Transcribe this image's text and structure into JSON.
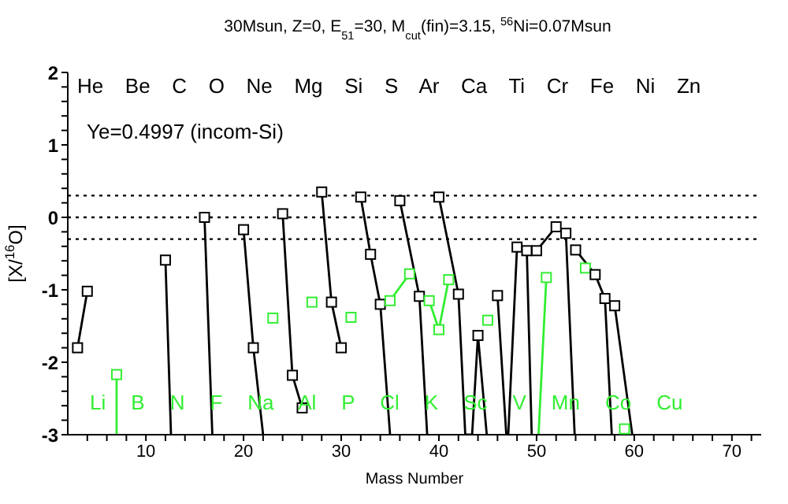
{
  "chart_data": {
    "type": "line",
    "title": "30Msun, Z=0, E$_{51}$=30, M$_{cut}$(fin)=3.15, $^{56}$Ni=0.07Msun",
    "xlabel": "Mass Number",
    "ylabel": "[X/$^{16}$O]",
    "xlim": [
      2,
      73
    ],
    "ylim": [
      -3,
      2
    ],
    "xticks": [
      {
        "value": 4,
        "label": null
      },
      {
        "value": 6,
        "label": null
      },
      {
        "value": 8,
        "label": null
      },
      10,
      {
        "value": 12,
        "label": null
      },
      {
        "value": 14,
        "label": null
      },
      {
        "value": 16,
        "label": null
      },
      {
        "value": 18,
        "label": null
      },
      20,
      {
        "value": 22,
        "label": null
      },
      {
        "value": 24,
        "label": null
      },
      {
        "value": 26,
        "label": null
      },
      {
        "value": 28,
        "label": null
      },
      30,
      {
        "value": 32,
        "label": null
      },
      {
        "value": 34,
        "label": null
      },
      {
        "value": 36,
        "label": null
      },
      {
        "value": 38,
        "label": null
      },
      40,
      {
        "value": 42,
        "label": null
      },
      {
        "value": 44,
        "label": null
      },
      {
        "value": 46,
        "label": null
      },
      {
        "value": 48,
        "label": null
      },
      50,
      {
        "value": 52,
        "label": null
      },
      {
        "value": 54,
        "label": null
      },
      {
        "value": 56,
        "label": null
      },
      {
        "value": 58,
        "label": null
      },
      60,
      {
        "value": 62,
        "label": null
      },
      {
        "value": 64,
        "label": null
      },
      {
        "value": 66,
        "label": null
      },
      {
        "value": 68,
        "label": null
      },
      70,
      {
        "value": 72,
        "label": null
      }
    ],
    "yticks": [
      -3,
      {
        "value": -2.8,
        "label": null
      },
      {
        "value": -2.6,
        "label": null
      },
      {
        "value": -2.4,
        "label": null
      },
      {
        "value": -2.2,
        "label": null
      },
      -2,
      {
        "value": -1.8,
        "label": null
      },
      {
        "value": -1.6,
        "label": null
      },
      {
        "value": -1.4,
        "label": null
      },
      {
        "value": -1.2,
        "label": null
      },
      -1,
      {
        "value": -0.8,
        "label": null
      },
      {
        "value": -0.6,
        "label": null
      },
      {
        "value": -0.4,
        "label": null
      },
      {
        "value": -0.2,
        "label": null
      },
      0,
      {
        "value": 0.2,
        "label": null
      },
      {
        "value": 0.4,
        "label": null
      },
      {
        "value": 0.6,
        "label": null
      },
      {
        "value": 0.8,
        "label": null
      },
      1,
      {
        "value": 1.2,
        "label": null
      },
      {
        "value": 1.4,
        "label": null
      },
      {
        "value": 1.6,
        "label": null
      },
      {
        "value": 1.8,
        "label": null
      },
      2
    ],
    "grid": false,
    "legend": false,
    "marker": "square",
    "line_style": "solid",
    "ref_lines": [
      {
        "axis": "y",
        "value": 0.3,
        "color": "#000000",
        "line_style": "dotted"
      },
      {
        "axis": "y",
        "value": 0,
        "color": "#000000",
        "line_style": "dotted"
      },
      {
        "axis": "y",
        "value": -0.3,
        "color": "#000000",
        "line_style": "dotted"
      }
    ],
    "series": [
      {
        "color": "#000000",
        "x": [
          3,
          4
        ],
        "values": [
          -1.8,
          -1.02
        ]
      },
      {
        "color": "#33ee33",
        "x": [
          7,
          7
        ],
        "values": [
          -2.17,
          -3
        ]
      },
      {
        "color": "#000000",
        "x": [
          12,
          12.57
        ],
        "values": [
          -0.59,
          -3
        ]
      },
      {
        "color": "#000000",
        "x": [
          16,
          16.8
        ],
        "values": [
          0,
          -3
        ]
      },
      {
        "color": "#000000",
        "x": [
          20,
          21,
          22
        ],
        "values": [
          -0.17,
          -1.8,
          -3
        ]
      },
      {
        "color": "#33ee33",
        "x": [
          23
        ],
        "values": [
          -1.39
        ]
      },
      {
        "color": "#000000",
        "x": [
          24,
          25,
          26
        ],
        "values": [
          0.05,
          -2.18,
          -2.63
        ]
      },
      {
        "color": "#33ee33",
        "x": [
          27
        ],
        "values": [
          -1.17
        ]
      },
      {
        "color": "#000000",
        "x": [
          28,
          29,
          30
        ],
        "values": [
          0.35,
          -1.17,
          -1.8
        ]
      },
      {
        "color": "#33ee33",
        "x": [
          31
        ],
        "values": [
          -1.38
        ]
      },
      {
        "color": "#000000",
        "x": [
          32,
          33,
          34,
          35
        ],
        "values": [
          0.28,
          -0.51,
          -1.2,
          -3
        ]
      },
      {
        "color": "#33ee33",
        "x": [
          35,
          37
        ],
        "values": [
          -1.15,
          -0.78
        ]
      },
      {
        "color": "#000000",
        "x": [
          36,
          38,
          38.8
        ],
        "values": [
          0.23,
          -1.09,
          -3
        ]
      },
      {
        "color": "#33ee33",
        "x": [
          39,
          40,
          41
        ],
        "values": [
          -1.15,
          -1.55,
          -0.86
        ]
      },
      {
        "color": "#000000",
        "x": [
          40,
          42,
          42.7,
          43.4,
          44,
          44.9
        ],
        "values": [
          0.28,
          -1.06,
          -3,
          -3,
          -1.63,
          -3
        ]
      },
      {
        "color": "#33ee33",
        "x": [
          45
        ],
        "values": [
          -1.42
        ]
      },
      {
        "color": "#000000",
        "x": [
          46,
          46.9,
          47.1,
          48,
          49,
          49.5
        ],
        "values": [
          -1.08,
          -3,
          -3,
          -0.41,
          -0.46,
          -3
        ]
      },
      {
        "color": "#33ee33",
        "x": [
          50.2,
          51
        ],
        "values": [
          -3,
          -0.83
        ]
      },
      {
        "color": "#000000",
        "x": [
          50,
          52,
          53,
          53.9
        ],
        "values": [
          -0.46,
          -0.13,
          -0.22,
          -3
        ]
      },
      {
        "color": "#33ee33",
        "x": [
          55
        ],
        "values": [
          -0.7
        ]
      },
      {
        "color": "#000000",
        "x": [
          54,
          56,
          57,
          57.7
        ],
        "values": [
          -0.45,
          -0.79,
          -1.12,
          -3
        ]
      },
      {
        "color": "#33ee33",
        "x": [
          59
        ],
        "values": [
          -2.92
        ]
      },
      {
        "color": "#000000",
        "x": [
          58,
          59.8
        ],
        "values": [
          -1.22,
          -3
        ]
      }
    ],
    "annotations": [
      "Ye=0.4997 (incom-Si)",
      "He Be C O Ne Mg Si S Ar Ca Ti Cr Fe Ni Zn",
      "Li B N F Na Al P Cl K Sc V Mn Co Cu"
    ]
  }
}
